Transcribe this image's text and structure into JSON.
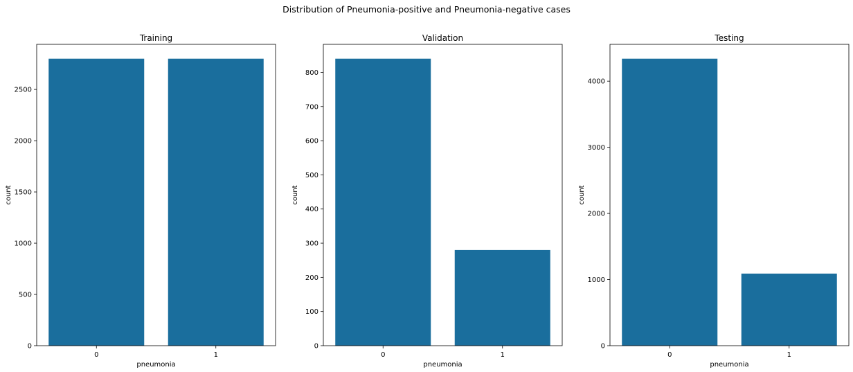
{
  "figure": {
    "suptitle": "Distribution of Pneumonia-positive and Pneumonia-negative cases"
  },
  "chart_data": [
    {
      "type": "bar",
      "title": "Training",
      "xlabel": "pneumonia",
      "ylabel": "count",
      "categories": [
        "0",
        "1"
      ],
      "values": [
        2800,
        2800
      ],
      "ylim": [
        0,
        2940
      ],
      "yticks": [
        0,
        500,
        1000,
        1500,
        2000,
        2500
      ],
      "bar_color": "#1a6e9d",
      "grid": false
    },
    {
      "type": "bar",
      "title": "Validation",
      "xlabel": "pneumonia",
      "ylabel": "count",
      "categories": [
        "0",
        "1"
      ],
      "values": [
        840,
        280
      ],
      "ylim": [
        0,
        882
      ],
      "yticks": [
        0,
        100,
        200,
        300,
        400,
        500,
        600,
        700,
        800
      ],
      "bar_color": "#1a6e9d",
      "grid": false
    },
    {
      "type": "bar",
      "title": "Testing",
      "xlabel": "pneumonia",
      "ylabel": "count",
      "categories": [
        "0",
        "1"
      ],
      "values": [
        4340,
        1090
      ],
      "ylim": [
        0,
        4557
      ],
      "yticks": [
        0,
        1000,
        2000,
        3000,
        4000
      ],
      "bar_color": "#1a6e9d",
      "grid": false
    }
  ]
}
